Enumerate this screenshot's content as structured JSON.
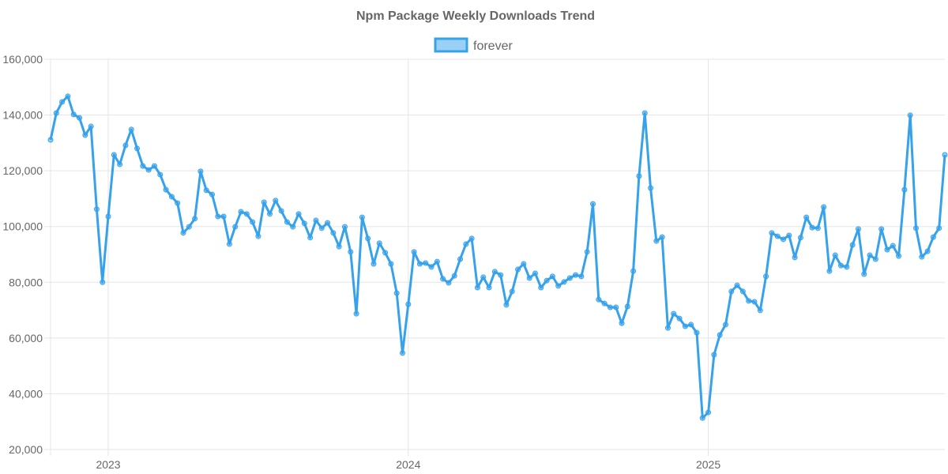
{
  "chart_data": {
    "type": "line",
    "title": "Npm Package Weekly Downloads Trend",
    "legend": [
      {
        "label": "forever",
        "position": "top"
      }
    ],
    "colors": {
      "line": "#36a2eb",
      "fill": "#9ad0f5",
      "grid": "#e5e5e5",
      "text": "#666666"
    },
    "xlabel": "",
    "ylabel": "",
    "ylim": [
      20000,
      160000
    ],
    "y_ticks": [
      "20,000",
      "40,000",
      "60,000",
      "80,000",
      "100,000",
      "120,000",
      "140,000",
      "160,000"
    ],
    "y_tick_values": [
      20000,
      40000,
      60000,
      80000,
      100000,
      120000,
      140000,
      160000
    ],
    "x_unit": "week index",
    "x_ticks": [
      {
        "label": "2023",
        "week": 10
      },
      {
        "label": "2024",
        "week": 62
      },
      {
        "label": "2025",
        "week": 114
      }
    ],
    "grid": true,
    "series": [
      {
        "name": "forever",
        "values": [
          131100,
          140700,
          144700,
          146700,
          140200,
          139000,
          132800,
          135900,
          106200,
          80000,
          103600,
          125700,
          122300,
          129100,
          134800,
          128000,
          121700,
          120300,
          121700,
          118600,
          113200,
          110700,
          108400,
          97700,
          99900,
          102800,
          119800,
          113000,
          111500,
          103600,
          103600,
          93700,
          99900,
          105300,
          104500,
          101600,
          96500,
          108700,
          104500,
          109300,
          105600,
          101600,
          99900,
          104500,
          101100,
          96000,
          102200,
          99400,
          101300,
          97700,
          92800,
          99900,
          90900,
          68700,
          103300,
          95700,
          86600,
          94000,
          90600,
          86600,
          76100,
          54600,
          72100,
          90900,
          86600,
          86900,
          85500,
          87400,
          81200,
          79800,
          82300,
          88300,
          93700,
          95700,
          78100,
          81800,
          78100,
          83800,
          82600,
          71900,
          76700,
          84600,
          86600,
          81500,
          83200,
          78100,
          80600,
          82100,
          78700,
          80100,
          81500,
          82600,
          82100,
          90900,
          108100,
          73800,
          72400,
          71000,
          71000,
          65300,
          71300,
          84000,
          118100,
          140700,
          113800,
          94800,
          96200,
          63600,
          68700,
          67000,
          64200,
          64800,
          61900,
          31300,
          33300,
          54000,
          61100,
          64800,
          76700,
          78900,
          76700,
          73300,
          73000,
          69900,
          82100,
          97700,
          96500,
          95400,
          96800,
          88900,
          96000,
          103300,
          99600,
          99400,
          107000,
          84000,
          89700,
          86000,
          85500,
          93400,
          99100,
          82900,
          89700,
          88300,
          99100,
          91700,
          93100,
          89400,
          113200,
          139900,
          99400,
          89100,
          91100,
          96200,
          99400,
          125700
        ]
      }
    ]
  }
}
